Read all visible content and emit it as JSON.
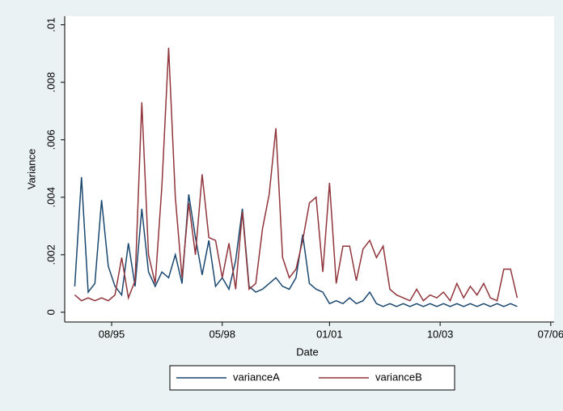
{
  "chart_data": {
    "type": "line",
    "x_label": "Date",
    "y_label": "Variance",
    "x": [
      "1994-09",
      "1994-11",
      "1995-01",
      "1995-03",
      "1995-05",
      "1995-07",
      "1995-09",
      "1995-11",
      "1996-01",
      "1996-03",
      "1996-05",
      "1996-07",
      "1996-09",
      "1996-11",
      "1997-01",
      "1997-03",
      "1997-05",
      "1997-07",
      "1997-09",
      "1997-11",
      "1998-01",
      "1998-03",
      "1998-05",
      "1998-07",
      "1998-09",
      "1998-11",
      "1999-01",
      "1999-03",
      "1999-05",
      "1999-07",
      "1999-09",
      "1999-11",
      "2000-01",
      "2000-03",
      "2000-05",
      "2000-07",
      "2000-09",
      "2000-11",
      "2001-01",
      "2001-03",
      "2001-05",
      "2001-07",
      "2001-09",
      "2001-11",
      "2002-01",
      "2002-03",
      "2002-05",
      "2002-07",
      "2002-09",
      "2002-11",
      "2003-01",
      "2003-03",
      "2003-05",
      "2003-07",
      "2003-09",
      "2003-11",
      "2004-01",
      "2004-03",
      "2004-05",
      "2004-07",
      "2004-09",
      "2004-11",
      "2005-01",
      "2005-03",
      "2005-05",
      "2005-07",
      "2005-09"
    ],
    "series": [
      {
        "name": "varianceA",
        "color": "#1a476f",
        "values": [
          0.0009,
          0.0047,
          0.0007,
          0.001,
          0.0039,
          0.0016,
          0.0009,
          0.0006,
          0.0024,
          0.0009,
          0.0036,
          0.0014,
          0.0009,
          0.0014,
          0.0012,
          0.002,
          0.001,
          0.0041,
          0.0026,
          0.0013,
          0.0025,
          0.0009,
          0.0012,
          0.0008,
          0.0018,
          0.0036,
          0.0009,
          0.0007,
          0.0008,
          0.001,
          0.0012,
          0.0009,
          0.0008,
          0.0012,
          0.0027,
          0.001,
          0.0008,
          0.0007,
          0.0003,
          0.0004,
          0.0003,
          0.0005,
          0.0003,
          0.0004,
          0.0007,
          0.0003,
          0.0002,
          0.0003,
          0.0002,
          0.0003,
          0.0002,
          0.0003,
          0.0002,
          0.0003,
          0.0002,
          0.0003,
          0.0002,
          0.0003,
          0.0002,
          0.0003,
          0.0002,
          0.0003,
          0.0002,
          0.0003,
          0.0002,
          0.0003,
          0.0002
        ]
      },
      {
        "name": "varianceB",
        "color": "#90353b",
        "values": [
          0.0006,
          0.0004,
          0.0005,
          0.0004,
          0.0005,
          0.0004,
          0.0006,
          0.0019,
          0.0005,
          0.0011,
          0.0073,
          0.002,
          0.001,
          0.0044,
          0.0092,
          0.004,
          0.0012,
          0.0038,
          0.002,
          0.0048,
          0.0026,
          0.0025,
          0.0012,
          0.0024,
          0.0008,
          0.0035,
          0.0008,
          0.001,
          0.0029,
          0.0041,
          0.0064,
          0.0019,
          0.0012,
          0.0015,
          0.0025,
          0.0038,
          0.004,
          0.0014,
          0.0045,
          0.001,
          0.0023,
          0.0023,
          0.0011,
          0.0022,
          0.0025,
          0.0019,
          0.0023,
          0.0008,
          0.0006,
          0.0005,
          0.0004,
          0.0008,
          0.0004,
          0.0006,
          0.0005,
          0.0007,
          0.0004,
          0.001,
          0.0005,
          0.0009,
          0.0006,
          0.001,
          0.0005,
          0.0004,
          0.0015,
          0.0015,
          0.0005
        ]
      }
    ],
    "xlim": [
      "1994-06",
      "2006-08"
    ],
    "xticks": [
      {
        "value": "1995-08",
        "label": "08/95"
      },
      {
        "value": "1998-05",
        "label": "05/98"
      },
      {
        "value": "2001-01",
        "label": "01/01"
      },
      {
        "value": "2003-10",
        "label": "10/03"
      },
      {
        "value": "2006-07",
        "label": "07/06"
      }
    ],
    "ylim": [
      -0.00034,
      0.0103
    ],
    "yticks": [
      0,
      {
        "value": 0.002,
        "label": ".002"
      },
      {
        "value": 0.004,
        "label": ".004"
      },
      {
        "value": 0.006,
        "label": ".006"
      },
      {
        "value": 0.008,
        "label": ".008"
      },
      {
        "value": 0.01,
        "label": ".01"
      }
    ],
    "grid": false,
    "legend": "bottom"
  }
}
